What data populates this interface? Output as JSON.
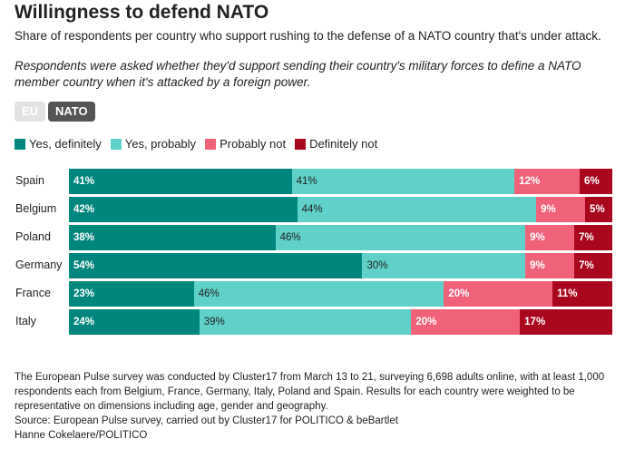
{
  "title": "Willingness to defend NATO",
  "subtitle": "Share of respondents per country who support rushing to the defense of a NATO country that's under attack.",
  "note": "Respondents were asked whether they'd support sending their country's military forces to define a NATO member country when it's attacked by a foreign power.",
  "toggles": {
    "eu": "EU",
    "nato": "NATO",
    "selected": "NATO"
  },
  "chart_data": {
    "type": "bar",
    "orientation": "horizontal",
    "stacked": true,
    "categories": [
      "Spain",
      "Belgium",
      "Poland",
      "Germany",
      "France",
      "Italy"
    ],
    "series": [
      {
        "name": "Yes, definitely",
        "color": "#00877d",
        "values": [
          41,
          42,
          38,
          54,
          23,
          24
        ]
      },
      {
        "name": "Yes, probably",
        "color": "#5fd1c8",
        "values": [
          41,
          44,
          46,
          30,
          46,
          39
        ]
      },
      {
        "name": "Probably not",
        "color": "#f0627a",
        "values": [
          12,
          9,
          9,
          9,
          20,
          20
        ]
      },
      {
        "name": "Definitely not",
        "color": "#a8071e",
        "values": [
          6,
          5,
          7,
          7,
          11,
          17
        ]
      }
    ],
    "xlim": [
      0,
      100
    ],
    "legend": "top-left",
    "value_suffix": "%"
  },
  "footer": {
    "methodology": "The European Pulse survey was conducted by Cluster17 from March 13 to 21, surveying 6,698 adults online, with at least 1,000 respondents each from Belgium, France, Germany, Italy, Poland and Spain. Results for each country were weighted to be representative on dimensions including age, gender and geography.",
    "source": "Source: European Pulse survey, carried out by Cluster17 for POLITICO & beBartlet",
    "credit": "Hanne Cokelaere/POLITICO"
  }
}
